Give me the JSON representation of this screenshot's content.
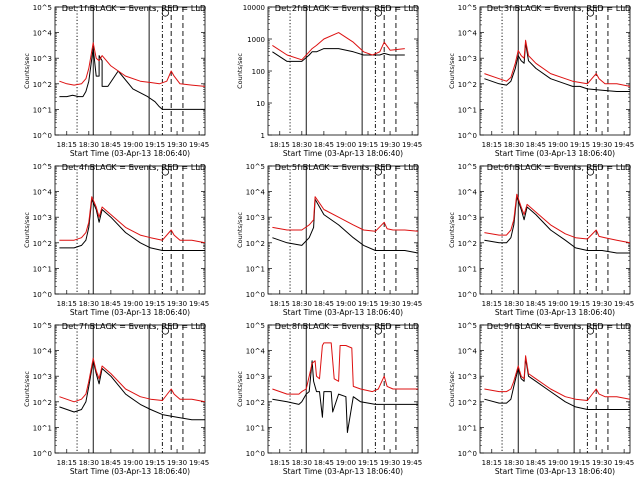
{
  "start_time_label": "Start Time (03-Apr-13 18:06:40)",
  "ylabel": "Counts/sec",
  "colors": {
    "events": "#000000",
    "lld": "#dd1111"
  },
  "x_ticks": [
    "18:15",
    "18:30",
    "18:45",
    "19:00",
    "19:15",
    "19:30",
    "19:45"
  ],
  "markers": {
    "dotted": "18:22",
    "solid": [
      "18:33",
      "19:11"
    ],
    "dashdot": "19:20",
    "dashed": [
      "19:26",
      "19:34"
    ]
  },
  "chart_data": [
    {
      "type": "line",
      "title": "Det 1f BLACK = Events, RED = LLD",
      "xlim": [
        "18:07",
        "19:49"
      ],
      "y_exp_range": [
        0,
        5
      ],
      "y_log_range": [
        0,
        5
      ],
      "ytick_labels": [
        "10^5",
        "10^4",
        "10^3",
        "10^2",
        "10^1",
        "10^0"
      ],
      "series": [
        {
          "name": "Events",
          "color": "#000000",
          "x": [
            "18:10",
            "18:15",
            "18:19",
            "18:23",
            "18:26",
            "18:28",
            "18:30",
            "18:33",
            "18:35",
            "18:37",
            "18:37",
            "18:39",
            "18:39",
            "18:43",
            "18:50",
            "19:00",
            "19:10",
            "19:15",
            "19:18",
            "19:20",
            "19:22",
            "19:30",
            "19:40",
            "19:49"
          ],
          "y_log": [
            1.5,
            1.5,
            1.55,
            1.5,
            1.5,
            1.7,
            2.1,
            3.4,
            2.3,
            2.3,
            3.1,
            2.9,
            1.9,
            1.9,
            2.5,
            1.8,
            1.5,
            1.3,
            1.1,
            1.0,
            1.0,
            1.0,
            1.0,
            1.0
          ]
        },
        {
          "name": "LLD",
          "color": "#dd1111",
          "x": [
            "18:10",
            "18:15",
            "18:20",
            "18:25",
            "18:28",
            "18:30",
            "18:33",
            "18:35",
            "18:37",
            "18:39",
            "18:45",
            "18:55",
            "19:05",
            "19:12",
            "19:18",
            "19:23",
            "19:26",
            "19:28",
            "19:32",
            "19:40",
            "19:49"
          ],
          "y_log": [
            2.1,
            2.0,
            1.95,
            2.0,
            2.2,
            2.6,
            3.6,
            3.0,
            2.9,
            3.1,
            2.7,
            2.3,
            2.1,
            2.05,
            2.0,
            2.1,
            2.5,
            2.3,
            2.0,
            1.95,
            1.9
          ]
        }
      ]
    },
    {
      "type": "line",
      "title": "Det 2f BLACK = Events, RED = LLD",
      "xlim": [
        "18:07",
        "19:49"
      ],
      "y_exp_range": [
        0,
        4
      ],
      "y_log_range": [
        0,
        4
      ],
      "ytick_labels": [
        "10000",
        "1000",
        "100",
        "10",
        "1"
      ],
      "series": [
        {
          "name": "Events",
          "color": "#000000",
          "x": [
            "18:10",
            "18:20",
            "18:30",
            "18:35",
            "18:37",
            "18:40",
            "18:45",
            "18:55",
            "19:05",
            "19:12",
            "19:18",
            "19:23",
            "19:26",
            "19:30",
            "19:40"
          ],
          "y_log": [
            2.6,
            2.3,
            2.3,
            2.5,
            2.6,
            2.6,
            2.7,
            2.7,
            2.6,
            2.5,
            2.5,
            2.5,
            2.55,
            2.5,
            2.5
          ]
        },
        {
          "name": "LLD",
          "color": "#dd1111",
          "x": [
            "18:10",
            "18:20",
            "18:30",
            "18:35",
            "18:37",
            "18:40",
            "18:45",
            "18:55",
            "19:05",
            "19:12",
            "19:18",
            "19:23",
            "19:26",
            "19:30",
            "19:40"
          ],
          "y_log": [
            2.8,
            2.5,
            2.35,
            2.6,
            2.7,
            2.8,
            3.0,
            3.2,
            2.9,
            2.6,
            2.5,
            2.6,
            2.9,
            2.65,
            2.7
          ]
        }
      ]
    },
    {
      "type": "line",
      "title": "Det 3f BLACK = Events, RED = LLD",
      "xlim": [
        "18:07",
        "19:49"
      ],
      "y_exp_range": [
        0,
        5
      ],
      "y_log_range": [
        0,
        5
      ],
      "ytick_labels": [
        "10^5",
        "10^4",
        "10^3",
        "10^2",
        "10^1",
        "10^0"
      ],
      "series": [
        {
          "name": "Events",
          "color": "#000000",
          "x": [
            "18:10",
            "18:20",
            "18:25",
            "18:28",
            "18:31",
            "18:33",
            "18:35",
            "18:37",
            "18:38",
            "18:40",
            "18:45",
            "18:55",
            "19:05",
            "19:10",
            "19:15",
            "19:20",
            "19:30",
            "19:40",
            "19:49"
          ],
          "y_log": [
            2.2,
            2.0,
            1.95,
            2.1,
            2.6,
            3.1,
            2.9,
            2.8,
            3.6,
            2.9,
            2.6,
            2.2,
            2.0,
            1.9,
            1.9,
            1.8,
            1.75,
            1.7,
            1.7
          ]
        },
        {
          "name": "LLD",
          "color": "#dd1111",
          "x": [
            "18:10",
            "18:20",
            "18:25",
            "18:28",
            "18:31",
            "18:33",
            "18:35",
            "18:37",
            "18:38",
            "18:40",
            "18:45",
            "18:55",
            "19:05",
            "19:10",
            "19:15",
            "19:20",
            "19:26",
            "19:28",
            "19:32",
            "19:40",
            "19:49"
          ],
          "y_log": [
            2.4,
            2.2,
            2.1,
            2.25,
            2.8,
            3.3,
            3.1,
            3.0,
            3.7,
            3.1,
            2.8,
            2.4,
            2.2,
            2.1,
            2.05,
            2.0,
            2.4,
            2.2,
            2.0,
            2.0,
            1.9
          ]
        }
      ]
    },
    {
      "type": "line",
      "title": "Det 4f BLACK = Events, RED = LLD",
      "xlim": [
        "18:07",
        "19:49"
      ],
      "y_exp_range": [
        0,
        5
      ],
      "y_log_range": [
        0,
        5
      ],
      "ytick_labels": [
        "10^5",
        "10^4",
        "10^3",
        "10^2",
        "10^1",
        "10^0"
      ],
      "series": [
        {
          "name": "Events",
          "color": "#000000",
          "x": [
            "18:10",
            "18:20",
            "18:25",
            "18:28",
            "18:30",
            "18:32",
            "18:35",
            "18:37",
            "18:39",
            "18:45",
            "18:55",
            "19:05",
            "19:12",
            "19:20",
            "19:30",
            "19:40",
            "19:49"
          ],
          "y_log": [
            1.8,
            1.8,
            1.9,
            2.1,
            2.6,
            3.7,
            3.3,
            2.8,
            3.3,
            3.0,
            2.4,
            2.0,
            1.8,
            1.7,
            1.7,
            1.7,
            1.7
          ]
        },
        {
          "name": "LLD",
          "color": "#dd1111",
          "x": [
            "18:10",
            "18:20",
            "18:25",
            "18:28",
            "18:30",
            "18:32",
            "18:35",
            "18:37",
            "18:39",
            "18:45",
            "18:55",
            "19:05",
            "19:12",
            "19:20",
            "19:26",
            "19:28",
            "19:32",
            "19:40",
            "19:49"
          ],
          "y_log": [
            2.1,
            2.1,
            2.2,
            2.4,
            2.8,
            3.8,
            3.4,
            3.0,
            3.4,
            3.1,
            2.6,
            2.3,
            2.2,
            2.1,
            2.5,
            2.3,
            2.1,
            2.1,
            2.0
          ]
        }
      ]
    },
    {
      "type": "line",
      "title": "Det 5f BLACK = Events, RED = LLD",
      "xlim": [
        "18:07",
        "19:49"
      ],
      "y_exp_range": [
        0,
        5
      ],
      "y_log_range": [
        0,
        5
      ],
      "ytick_labels": [
        "10^5",
        "10^4",
        "10^3",
        "10^2",
        "10^1",
        "10^0"
      ],
      "series": [
        {
          "name": "Events",
          "color": "#000000",
          "x": [
            "18:10",
            "18:20",
            "18:30",
            "18:35",
            "18:38",
            "18:39",
            "18:45",
            "18:55",
            "19:05",
            "19:12",
            "19:20",
            "19:30",
            "19:40",
            "19:49"
          ],
          "y_log": [
            2.2,
            2.0,
            1.9,
            2.2,
            2.6,
            3.7,
            3.1,
            2.7,
            2.2,
            1.9,
            1.7,
            1.7,
            1.7,
            1.6
          ]
        },
        {
          "name": "LLD",
          "color": "#dd1111",
          "x": [
            "18:10",
            "18:20",
            "18:30",
            "18:35",
            "18:38",
            "18:39",
            "18:45",
            "18:55",
            "19:05",
            "19:12",
            "19:20",
            "19:26",
            "19:28",
            "19:32",
            "19:40",
            "19:49"
          ],
          "y_log": [
            2.6,
            2.5,
            2.5,
            2.7,
            2.9,
            3.8,
            3.3,
            3.0,
            2.7,
            2.5,
            2.45,
            2.8,
            2.55,
            2.5,
            2.5,
            2.45
          ]
        }
      ]
    },
    {
      "type": "line",
      "title": "Det 6f BLACK = Events, RED = LLD",
      "xlim": [
        "18:07",
        "19:49"
      ],
      "y_exp_range": [
        0,
        5
      ],
      "y_log_range": [
        0,
        5
      ],
      "ytick_labels": [
        "10^5",
        "10^4",
        "10^3",
        "10^2",
        "10^1",
        "10^0"
      ],
      "series": [
        {
          "name": "Events",
          "color": "#000000",
          "x": [
            "18:10",
            "18:20",
            "18:25",
            "18:28",
            "18:30",
            "18:32",
            "18:35",
            "18:37",
            "18:39",
            "18:45",
            "18:55",
            "19:05",
            "19:12",
            "19:20",
            "19:30",
            "19:40",
            "19:49"
          ],
          "y_log": [
            2.1,
            2.0,
            2.0,
            2.2,
            2.7,
            3.8,
            3.3,
            2.9,
            3.4,
            3.1,
            2.5,
            2.1,
            1.8,
            1.7,
            1.7,
            1.6,
            1.6
          ]
        },
        {
          "name": "LLD",
          "color": "#dd1111",
          "x": [
            "18:10",
            "18:20",
            "18:25",
            "18:28",
            "18:30",
            "18:32",
            "18:35",
            "18:37",
            "18:39",
            "18:45",
            "18:55",
            "19:05",
            "19:12",
            "19:20",
            "19:26",
            "19:28",
            "19:32",
            "19:40",
            "19:49"
          ],
          "y_log": [
            2.4,
            2.3,
            2.3,
            2.5,
            2.9,
            3.9,
            3.4,
            3.1,
            3.5,
            3.2,
            2.7,
            2.35,
            2.2,
            2.15,
            2.5,
            2.25,
            2.2,
            2.1,
            2.0
          ]
        }
      ]
    },
    {
      "type": "line",
      "title": "Det 7f BLACK = Events, RED = LLD",
      "xlim": [
        "18:07",
        "19:49"
      ],
      "y_exp_range": [
        0,
        5
      ],
      "y_log_range": [
        0,
        5
      ],
      "ytick_labels": [
        "10^5",
        "10^4",
        "10^3",
        "10^2",
        "10^1",
        "10^0"
      ],
      "series": [
        {
          "name": "Events",
          "color": "#000000",
          "x": [
            "18:10",
            "18:20",
            "18:25",
            "18:28",
            "18:30",
            "18:33",
            "18:35",
            "18:37",
            "18:39",
            "18:45",
            "18:55",
            "19:05",
            "19:12",
            "19:20",
            "19:30",
            "19:40",
            "19:49"
          ],
          "y_log": [
            1.8,
            1.6,
            1.7,
            2.0,
            2.6,
            3.6,
            3.1,
            2.7,
            3.3,
            3.0,
            2.3,
            1.9,
            1.7,
            1.5,
            1.4,
            1.3,
            1.3
          ]
        },
        {
          "name": "LLD",
          "color": "#dd1111",
          "x": [
            "18:10",
            "18:20",
            "18:25",
            "18:28",
            "18:30",
            "18:33",
            "18:35",
            "18:37",
            "18:39",
            "18:45",
            "18:55",
            "19:05",
            "19:12",
            "19:20",
            "19:26",
            "19:28",
            "19:32",
            "19:40",
            "19:49"
          ],
          "y_log": [
            2.2,
            2.0,
            2.1,
            2.3,
            2.8,
            3.7,
            3.2,
            2.9,
            3.4,
            3.1,
            2.5,
            2.2,
            2.1,
            2.05,
            2.5,
            2.3,
            2.1,
            2.1,
            2.0
          ]
        }
      ]
    },
    {
      "type": "line",
      "title": "Det 8f BLACK = Events, RED = LLD",
      "xlim": [
        "18:07",
        "19:49"
      ],
      "y_exp_range": [
        0,
        5
      ],
      "y_log_range": [
        0,
        5
      ],
      "ytick_labels": [
        "10^5",
        "10^4",
        "10^3",
        "10^2",
        "10^1",
        "10^0"
      ],
      "series": [
        {
          "name": "Events",
          "color": "#000000",
          "x": [
            "18:10",
            "18:20",
            "18:28",
            "18:30",
            "18:33",
            "18:35",
            "18:37",
            "18:38",
            "18:40",
            "18:42",
            "18:44",
            "18:45",
            "18:50",
            "18:51",
            "18:55",
            "19:00",
            "19:01",
            "19:05",
            "19:10",
            "19:20",
            "19:30",
            "19:40",
            "19:49"
          ],
          "y_log": [
            2.1,
            2.0,
            1.9,
            2.0,
            2.3,
            2.4,
            3.6,
            2.8,
            2.4,
            2.4,
            1.4,
            2.4,
            2.4,
            1.6,
            2.3,
            2.2,
            0.8,
            2.2,
            2.0,
            1.9,
            1.9,
            1.9,
            1.9
          ]
        },
        {
          "name": "LLD",
          "color": "#dd1111",
          "x": [
            "18:10",
            "18:20",
            "18:28",
            "18:30",
            "18:33",
            "18:35",
            "18:37",
            "18:39",
            "18:40",
            "18:42",
            "18:44",
            "18:45",
            "18:47",
            "18:50",
            "18:52",
            "18:55",
            "18:56",
            "19:00",
            "19:04",
            "19:05",
            "19:10",
            "19:18",
            "19:22",
            "19:26",
            "19:28",
            "19:32",
            "19:40",
            "19:49"
          ],
          "y_log": [
            2.5,
            2.3,
            2.3,
            2.4,
            2.5,
            3.0,
            3.5,
            3.6,
            3.0,
            2.9,
            4.2,
            4.3,
            4.3,
            4.3,
            2.9,
            2.8,
            4.2,
            4.2,
            4.1,
            2.6,
            2.5,
            2.4,
            2.5,
            3.0,
            2.6,
            2.5,
            2.5,
            2.5
          ]
        }
      ]
    },
    {
      "type": "line",
      "title": "Det 9f BLACK = Events, RED = LLD",
      "xlim": [
        "18:07",
        "19:49"
      ],
      "y_exp_range": [
        0,
        5
      ],
      "y_log_range": [
        0,
        5
      ],
      "ytick_labels": [
        "10^5",
        "10^4",
        "10^3",
        "10^2",
        "10^1",
        "10^0"
      ],
      "series": [
        {
          "name": "Events",
          "color": "#000000",
          "x": [
            "18:10",
            "18:20",
            "18:25",
            "18:28",
            "18:30",
            "18:33",
            "18:35",
            "18:37",
            "18:38",
            "18:40",
            "18:45",
            "18:55",
            "19:05",
            "19:12",
            "19:20",
            "19:30",
            "19:40",
            "19:49"
          ],
          "y_log": [
            2.1,
            1.95,
            1.95,
            2.1,
            2.6,
            3.3,
            2.9,
            2.8,
            3.7,
            3.0,
            2.8,
            2.4,
            2.0,
            1.8,
            1.7,
            1.7,
            1.7,
            1.7
          ]
        },
        {
          "name": "LLD",
          "color": "#dd1111",
          "x": [
            "18:10",
            "18:20",
            "18:25",
            "18:28",
            "18:30",
            "18:33",
            "18:35",
            "18:37",
            "18:38",
            "18:40",
            "18:45",
            "18:55",
            "19:05",
            "19:12",
            "19:20",
            "19:26",
            "19:28",
            "19:32",
            "19:40",
            "19:49"
          ],
          "y_log": [
            2.5,
            2.4,
            2.4,
            2.5,
            2.8,
            3.4,
            3.0,
            2.9,
            3.8,
            3.1,
            2.9,
            2.5,
            2.2,
            2.1,
            2.05,
            2.5,
            2.3,
            2.2,
            2.2,
            2.1
          ]
        }
      ]
    }
  ]
}
